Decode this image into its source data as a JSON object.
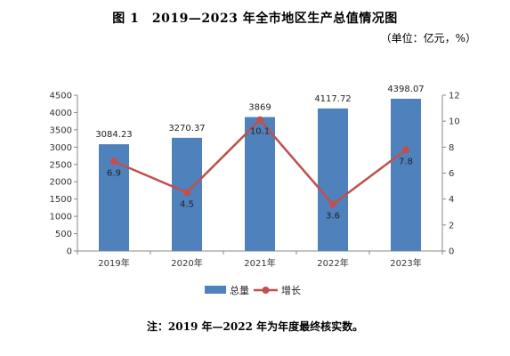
{
  "header": {
    "title": "图 1　2019—2023 年全市地区生产总值情况图",
    "unit": "（单位：亿元，%）"
  },
  "footer": {
    "note": "注：2019 年—2022 年为年度最终核实数。"
  },
  "chart_data": {
    "type": "bar",
    "categories": [
      "2019年",
      "2020年",
      "2021年",
      "2022年",
      "2023年"
    ],
    "series": [
      {
        "name": "总量",
        "type": "bar",
        "axis": "left",
        "color": "#4F81BD",
        "values": [
          3084.23,
          3270.37,
          3869,
          4117.72,
          4398.07
        ],
        "labels": [
          "3084.23",
          "3270.37",
          "3869",
          "4117.72",
          "4398.07"
        ]
      },
      {
        "name": "增长",
        "type": "line",
        "axis": "right",
        "color": "#C0504D",
        "values": [
          6.9,
          4.5,
          10.1,
          3.6,
          7.8
        ],
        "labels": [
          "6.9",
          "4.5",
          "10.1",
          "3.6",
          "7.8"
        ]
      }
    ],
    "y_left": {
      "min": 0,
      "max": 4500,
      "step": 500
    },
    "y_right": {
      "min": 0,
      "max": 12,
      "step": 2
    },
    "grid": false,
    "legend": "bottom"
  }
}
